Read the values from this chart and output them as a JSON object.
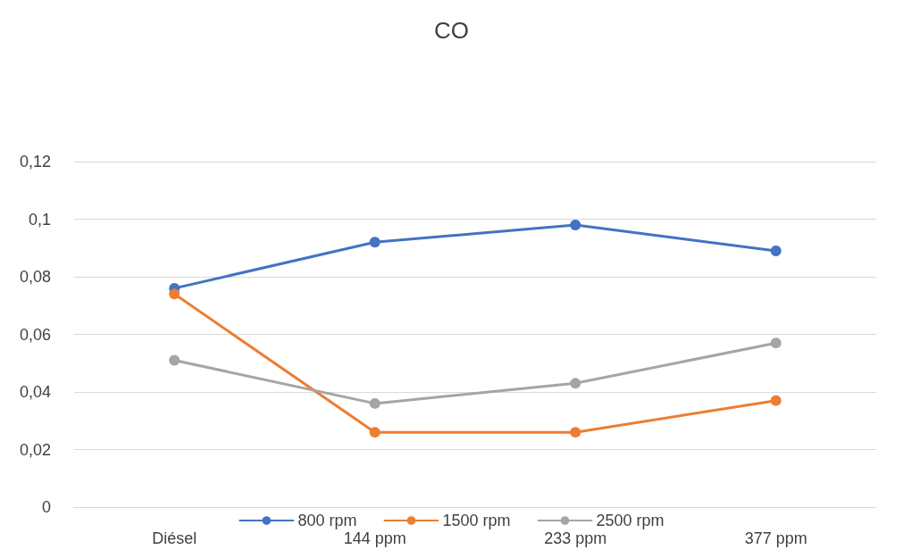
{
  "chart_data": {
    "type": "line",
    "title": "CO",
    "categories": [
      "Diésel",
      "144 ppm",
      "233 ppm",
      "377 ppm"
    ],
    "series": [
      {
        "name": "800 rpm",
        "color": "#4472c4",
        "values": [
          0.076,
          0.092,
          0.098,
          0.089
        ]
      },
      {
        "name": "1500 rpm",
        "color": "#ed7d31",
        "values": [
          0.074,
          0.026,
          0.026,
          0.037
        ]
      },
      {
        "name": "2500 rpm",
        "color": "#a5a5a5",
        "values": [
          0.051,
          0.036,
          0.043,
          0.057
        ]
      }
    ],
    "ylim": [
      0,
      0.12
    ],
    "yticks": [
      0,
      {
        "value": 0.02,
        "label": "0,02"
      },
      {
        "value": 0.04,
        "label": "0,04"
      },
      {
        "value": 0.06,
        "label": "0,06"
      },
      {
        "value": 0.08,
        "label": "0,08"
      },
      {
        "value": 0.1,
        "label": "0,1"
      },
      {
        "value": 0.12,
        "label": "0,12"
      }
    ],
    "grid": "y",
    "legend": "bottom",
    "marker": "circle",
    "line_style": "solid"
  }
}
